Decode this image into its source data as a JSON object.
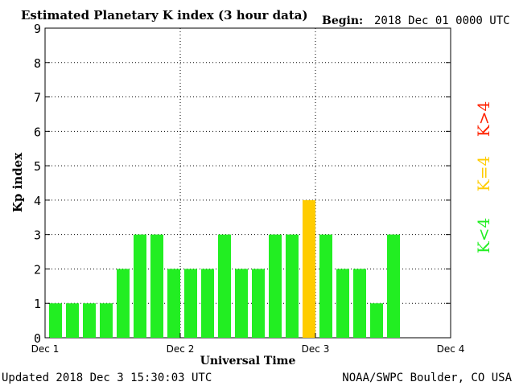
{
  "header": {
    "title": "Estimated Planetary K index (3 hour data)",
    "begin_label": "Begin:",
    "begin_value": "2018 Dec 01 0000 UTC"
  },
  "footer": {
    "updated": "Updated 2018 Dec  3 15:30:03 UTC",
    "source": "NOAA/SWPC Boulder, CO USA"
  },
  "legend": {
    "high": "K>4",
    "equal": "K=4",
    "low": "K<4"
  },
  "chart_data": {
    "type": "bar",
    "title": "Estimated Planetary K index (3 hour data)",
    "xlabel": "Universal Time",
    "ylabel": "Kp index",
    "x_tick_labels": [
      "Dec 1",
      "Dec 2",
      "Dec 3",
      "Dec 4"
    ],
    "y_ticks": [
      0,
      1,
      2,
      3,
      4,
      5,
      6,
      7,
      8,
      9
    ],
    "ylim": [
      0,
      9
    ],
    "x_range_days": 3,
    "interval_hours": 3,
    "grid": true,
    "values": [
      1,
      1,
      1,
      1,
      2,
      3,
      3,
      2,
      2,
      2,
      3,
      2,
      2,
      3,
      3,
      4,
      3,
      2,
      2,
      1,
      3
    ],
    "colors": {
      "low": "#22ee22",
      "equal": "#ffcc00",
      "high": "#ff2200"
    }
  }
}
